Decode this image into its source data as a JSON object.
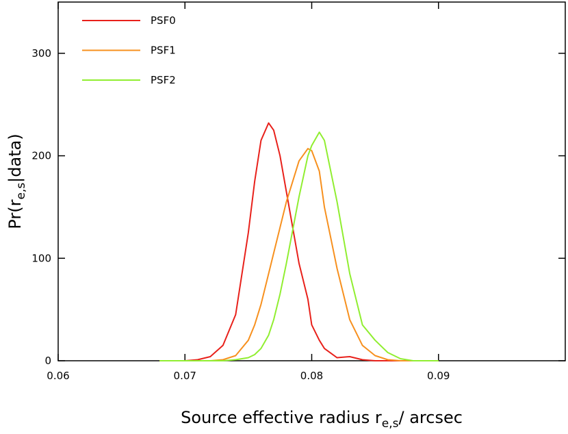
{
  "chart_data": {
    "type": "line",
    "x_label": {
      "before": "Source effective radius r",
      "sub": "e,s",
      "after": "/ arcsec"
    },
    "y_label": {
      "before": "Pr(r",
      "sub": "e,s",
      "after": "|data)"
    },
    "x": [
      0.068,
      0.07,
      0.071,
      0.072,
      0.073,
      0.074,
      0.075,
      0.0755,
      0.076,
      0.0766,
      0.077,
      0.0775,
      0.078,
      0.079,
      0.0797,
      0.08,
      0.0806,
      0.081,
      0.082,
      0.083,
      0.084,
      0.085,
      0.086,
      0.087,
      0.088,
      0.09
    ],
    "series": [
      {
        "name": "PSF0",
        "color": "#e8201a",
        "values": [
          0,
          0,
          1,
          4,
          15,
          45,
          125,
          175,
          215,
          232,
          225,
          200,
          165,
          95,
          60,
          35,
          20,
          12,
          3,
          4,
          1,
          0,
          0,
          0,
          0,
          0
        ]
      },
      {
        "name": "PSF1",
        "color": "#f7901e",
        "values": [
          0,
          0,
          0,
          0,
          1,
          5,
          20,
          35,
          55,
          85,
          105,
          130,
          155,
          195,
          207,
          205,
          185,
          150,
          90,
          40,
          15,
          5,
          1,
          0,
          0,
          0
        ]
      },
      {
        "name": "PSF2",
        "color": "#90ee30",
        "values": [
          0,
          0,
          0,
          0,
          0,
          1,
          3,
          6,
          12,
          25,
          40,
          65,
          95,
          160,
          200,
          210,
          223,
          215,
          155,
          85,
          35,
          20,
          8,
          2,
          0,
          0
        ]
      }
    ],
    "xlim": [
      0.06,
      0.1
    ],
    "ylim": [
      0,
      350
    ],
    "xticks": [
      0.06,
      0.07,
      0.08,
      0.09
    ],
    "yticks": [
      0,
      100,
      200,
      300
    ],
    "legend": "upper-left"
  }
}
